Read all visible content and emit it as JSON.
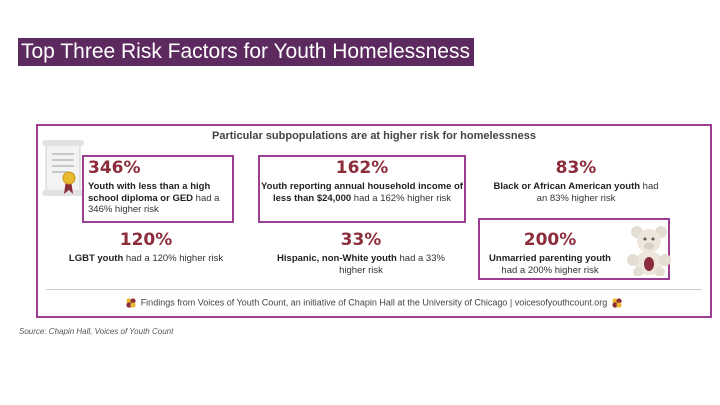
{
  "slide_title": "Top Three Risk Factors for Youth Homelessness",
  "infographic": {
    "header": "Particular subpopulations are at higher risk for homelessness",
    "stats": [
      {
        "value": "346%",
        "lead": "Youth with less than a high school diploma or GED",
        "rest": " had a 346% higher risk"
      },
      {
        "value": "162%",
        "lead": "Youth reporting annual household income of less than $24,000",
        "rest": " had a 162% higher risk"
      },
      {
        "value": "83%",
        "lead": "Black or African American youth",
        "rest": " had an 83% higher risk"
      },
      {
        "value": "120%",
        "lead": "LGBT youth",
        "rest": " had a 120% higher risk"
      },
      {
        "value": "33%",
        "lead": "Hispanic, non-White youth",
        "rest": " had a 33% higher risk"
      },
      {
        "value": "200%",
        "lead": "Unmarried parenting youth",
        "rest": " had a 200% higher risk"
      }
    ],
    "footer": "Findings from Voices of Youth Count, an initiative of Chapin Hall at the University of Chicago  |  voicesofyouthcount.org"
  },
  "source": "Source: Chapin Hall, Voices of Youth Count",
  "colors": {
    "title_bg": "#5c2a5e",
    "accent_border": "#9b3f93",
    "stat_value": "#8b2d3a"
  },
  "icons": [
    "diploma-icon",
    "teddy-bear-icon",
    "flower-logo-icon"
  ]
}
